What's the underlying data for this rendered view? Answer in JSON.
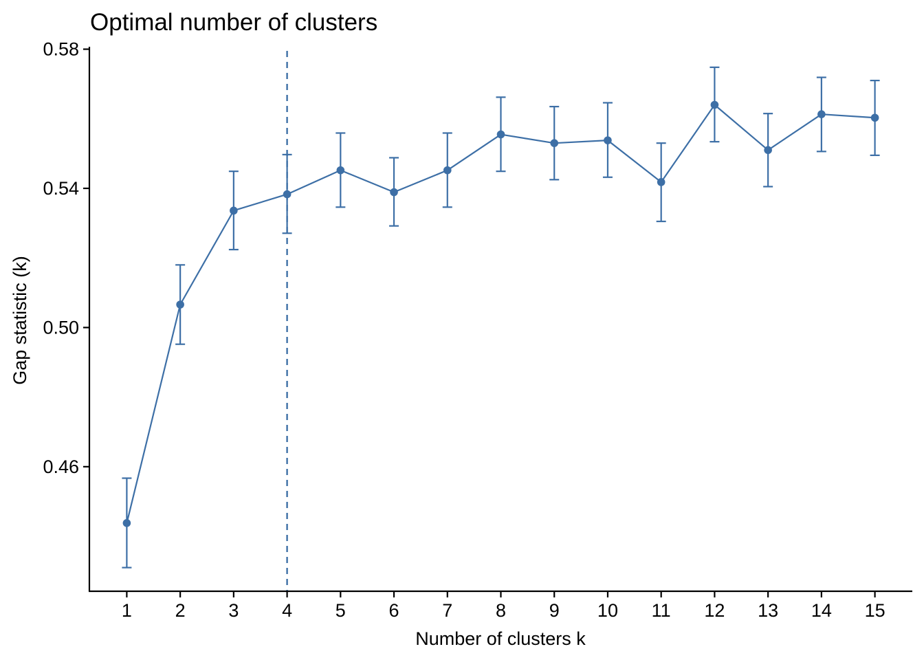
{
  "chart_data": {
    "type": "line",
    "title": "Optimal number of clusters",
    "xlabel": "Number of clusters k",
    "ylabel": "Gap statistic (k)",
    "x": [
      1,
      2,
      3,
      4,
      5,
      6,
      7,
      8,
      9,
      10,
      11,
      12,
      13,
      14,
      15
    ],
    "series": [
      {
        "values": [
          0.4438,
          0.5066,
          0.5336,
          0.5383,
          0.5452,
          0.5389,
          0.5452,
          0.5555,
          0.553,
          0.5538,
          0.5418,
          0.564,
          0.551,
          0.5613,
          0.5603
        ],
        "ymin": [
          0.431,
          0.4952,
          0.5224,
          0.5271,
          0.5346,
          0.5292,
          0.5346,
          0.5449,
          0.5425,
          0.5432,
          0.5305,
          0.5534,
          0.5405,
          0.5506,
          0.5495
        ],
        "ymax": [
          0.4567,
          0.518,
          0.5449,
          0.5497,
          0.5559,
          0.5488,
          0.5559,
          0.5662,
          0.5635,
          0.5646,
          0.553,
          0.5748,
          0.5615,
          0.5719,
          0.571
        ]
      }
    ],
    "optimal_k": 4,
    "ylim": [
      0.4242,
      0.5807
    ],
    "xlim": [
      0.3,
      15.7
    ],
    "yticks": [
      0.46,
      0.5,
      0.54,
      0.58
    ],
    "ytick_labels": [
      "0.46",
      "0.50",
      "0.54",
      "0.58"
    ],
    "xticks": [
      1,
      2,
      3,
      4,
      5,
      6,
      7,
      8,
      9,
      10,
      11,
      12,
      13,
      14,
      15
    ],
    "xtick_labels": [
      "1",
      "2",
      "3",
      "4",
      "5",
      "6",
      "7",
      "8",
      "9",
      "10",
      "11",
      "12",
      "13",
      "14",
      "15"
    ],
    "grid": false,
    "colors": {
      "series": "#3d6fa6",
      "axis": "#000000"
    }
  }
}
